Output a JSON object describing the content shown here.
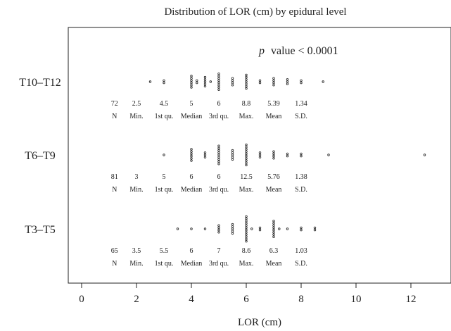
{
  "chart_data": {
    "type": "scatter",
    "title": "Distribution of LOR (cm) by epidural level",
    "xlabel": "LOR (cm)",
    "ylabel": "",
    "xlim": [
      -0.5,
      13.2
    ],
    "xticks": [
      "0",
      "2",
      "4",
      "6",
      "8",
      "10",
      "12"
    ],
    "annotation_prefix": "p",
    "annotation_rest": "value < 0.0001",
    "stat_labels": [
      "N",
      "Min.",
      "1st qu.",
      "Median",
      "3rd qu.",
      "Max.",
      "Mean",
      "S.D."
    ],
    "groups": [
      {
        "name": "T10–T12",
        "stats": [
          "72",
          "2.5",
          "4.5",
          "5",
          "6",
          "8.8",
          "5.39",
          "1.34"
        ],
        "points": [
          [
            2.5,
            1
          ],
          [
            3,
            2
          ],
          [
            3.5,
            0
          ],
          [
            4,
            6
          ],
          [
            4.2,
            2
          ],
          [
            4.5,
            5
          ],
          [
            4.7,
            1
          ],
          [
            5,
            8
          ],
          [
            5.5,
            4
          ],
          [
            6,
            7
          ],
          [
            6.5,
            2
          ],
          [
            7,
            4
          ],
          [
            7.5,
            3
          ],
          [
            8,
            2
          ],
          [
            8.8,
            1
          ]
        ]
      },
      {
        "name": "T6–T9",
        "stats": [
          "81",
          "3",
          "5",
          "6",
          "6",
          "12.5",
          "5.76",
          "1.38"
        ],
        "points": [
          [
            3,
            1
          ],
          [
            4,
            6
          ],
          [
            4.5,
            3
          ],
          [
            5,
            9
          ],
          [
            5.5,
            5
          ],
          [
            6,
            10
          ],
          [
            6.5,
            3
          ],
          [
            7,
            4
          ],
          [
            7.5,
            2
          ],
          [
            8,
            2
          ],
          [
            9,
            1
          ],
          [
            12.5,
            1
          ]
        ]
      },
      {
        "name": "T3–T5",
        "stats": [
          "65",
          "3.5",
          "5.5",
          "6",
          "7",
          "8.6",
          "6.3",
          "1.03"
        ],
        "points": [
          [
            3.5,
            1
          ],
          [
            4,
            1
          ],
          [
            4.5,
            1
          ],
          [
            5,
            4
          ],
          [
            5.5,
            5
          ],
          [
            6,
            12
          ],
          [
            6.2,
            1
          ],
          [
            6.5,
            2
          ],
          [
            7,
            8
          ],
          [
            7.2,
            1
          ],
          [
            7.5,
            1
          ],
          [
            8,
            2
          ],
          [
            8.5,
            2
          ]
        ]
      }
    ]
  }
}
